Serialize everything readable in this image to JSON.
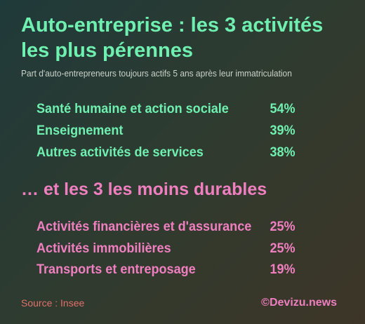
{
  "chart_data": {
    "type": "table",
    "title": "Auto-entreprise : les 3 activités les plus pérennes",
    "subtitle": "Part d'auto-entrepreneurs toujours actifs 5 ans après leur immatriculation",
    "top_series": [
      {
        "label": "Santé humaine et action sociale",
        "value": "54%"
      },
      {
        "label": "Enseignement",
        "value": "39%"
      },
      {
        "label": "Autres activités de services",
        "value": "38%"
      }
    ],
    "bottom_heading": "… et les 3 les moins durables",
    "bottom_series": [
      {
        "label": "Activités financières et d'assurance",
        "value": "25%"
      },
      {
        "label": "Activités immobilières",
        "value": "25%"
      },
      {
        "label": "Transports et entreposage",
        "value": "19%"
      }
    ],
    "source": "Source : Insee",
    "credit": "©Devizu.news"
  },
  "colors": {
    "top": "#6ff0b0",
    "bottom": "#f07fc0",
    "source": "#e0706c"
  }
}
